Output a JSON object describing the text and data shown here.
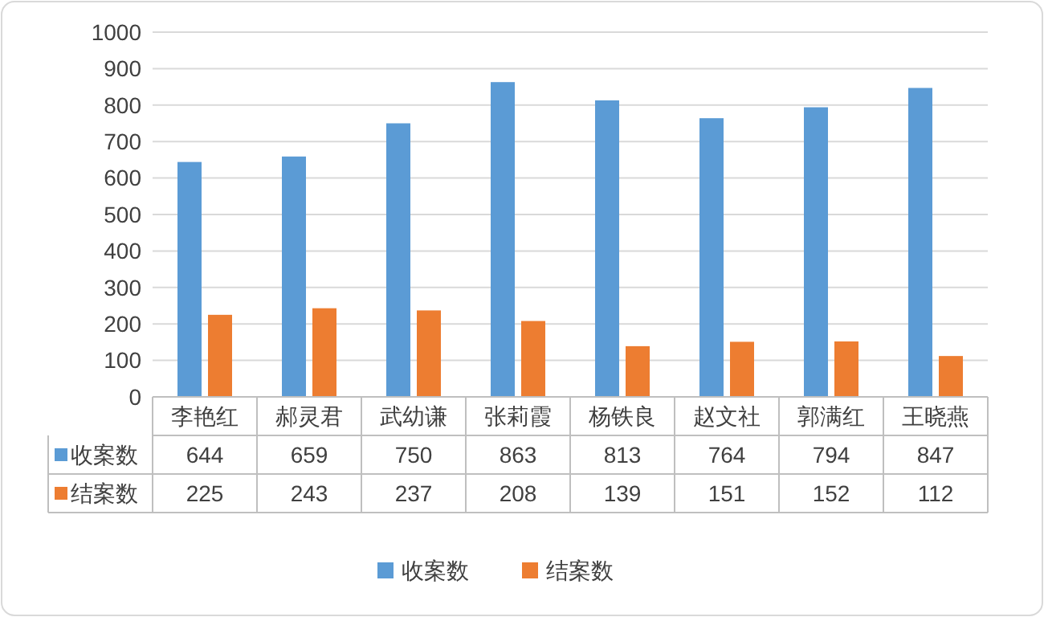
{
  "chart_data": {
    "type": "bar",
    "categories": [
      "李艳红",
      "郝灵君",
      "武幼谦",
      "张莉霞",
      "杨铁良",
      "赵文社",
      "郭满红",
      "王晓燕"
    ],
    "series": [
      {
        "name": "收案数",
        "color": "#5b9bd5",
        "values": [
          644,
          659,
          750,
          863,
          813,
          764,
          794,
          847
        ]
      },
      {
        "name": "结案数",
        "color": "#ed7d31",
        "values": [
          225,
          243,
          237,
          208,
          139,
          151,
          152,
          112
        ]
      }
    ],
    "ylim": [
      0,
      1000
    ],
    "yticks": [
      0,
      100,
      200,
      300,
      400,
      500,
      600,
      700,
      800,
      900,
      1000
    ],
    "grid": "y",
    "legend": "bottom",
    "data_labels": true
  }
}
